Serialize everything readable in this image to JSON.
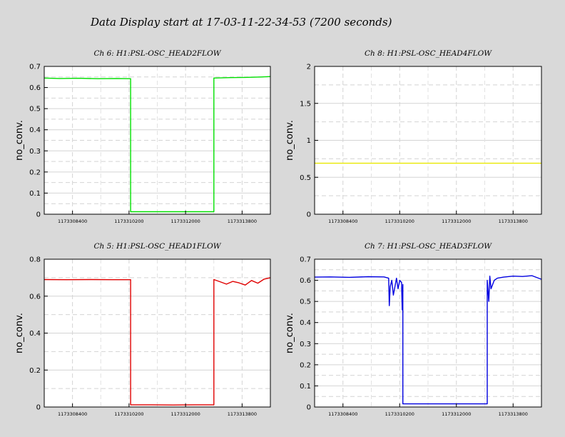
{
  "page": {
    "title": "Data Display start at 17-03-11-22-34-53 (7200 seconds)"
  },
  "chart_data": [
    {
      "type": "line",
      "title": "Ch 6: H1:PSL-OSC_HEAD2FLOW",
      "ylabel": "no_conv.",
      "xlabel": "",
      "xlim": [
        1173307500,
        1173314700
      ],
      "ylim": [
        0,
        0.7
      ],
      "yticks": [
        0,
        0.1,
        0.2,
        0.3,
        0.4,
        0.5,
        0.6,
        0.7
      ],
      "ytick_labels": [
        "0",
        "0.1",
        "0.2",
        "0.3",
        "0.4",
        "0.5",
        "0.6",
        "0.7"
      ],
      "xticks": [
        1173308400,
        1173310200,
        1173312000,
        1173313800
      ],
      "xtick_labels": [
        "1173308400",
        "1173310200",
        "1173312000",
        "1173313800"
      ],
      "grid": true,
      "color": "#00e000",
      "series": [
        {
          "x": [
            1173307500,
            1173308000,
            1173308600,
            1173309200,
            1173309800,
            1173310250,
            1173310250,
            1173310900,
            1173311600,
            1173312300,
            1173312900,
            1173312900,
            1173313400,
            1173313900,
            1173314400,
            1173314700
          ],
          "y": [
            0.645,
            0.643,
            0.644,
            0.642,
            0.643,
            0.642,
            0.012,
            0.012,
            0.012,
            0.012,
            0.012,
            0.645,
            0.647,
            0.648,
            0.65,
            0.652
          ]
        }
      ]
    },
    {
      "type": "line",
      "title": "Ch 8: H1:PSL-OSC_HEAD4FLOW",
      "ylabel": "no_conv.",
      "xlabel": "",
      "xlim": [
        1173307500,
        1173314700
      ],
      "ylim": [
        0,
        2
      ],
      "yticks": [
        0,
        0.5,
        1,
        1.5,
        2
      ],
      "ytick_labels": [
        "0",
        "0.5",
        "1",
        "1.5",
        "2"
      ],
      "xticks": [
        1173308400,
        1173310200,
        1173312000,
        1173313800
      ],
      "xtick_labels": [
        "1173308400",
        "1173310200",
        "1173312000",
        "1173313800"
      ],
      "grid": true,
      "color": "#e8e800",
      "series": [
        {
          "x": [
            1173307500,
            1173314700
          ],
          "y": [
            0.69,
            0.69
          ]
        }
      ]
    },
    {
      "type": "line",
      "title": "Ch 5: H1:PSL-OSC_HEAD1FLOW",
      "ylabel": "no_conv.",
      "xlabel": "",
      "xlim": [
        1173307500,
        1173314700
      ],
      "ylim": [
        0,
        0.8
      ],
      "yticks": [
        0,
        0.2,
        0.4,
        0.6,
        0.8
      ],
      "ytick_labels": [
        "0",
        "0.2",
        "0.4",
        "0.6",
        "0.8"
      ],
      "xticks": [
        1173308400,
        1173310200,
        1173312000,
        1173313800
      ],
      "xtick_labels": [
        "1173308400",
        "1173310200",
        "1173312000",
        "1173313800"
      ],
      "grid": true,
      "color": "#e00000",
      "series": [
        {
          "x": [
            1173307500,
            1173308200,
            1173309000,
            1173309700,
            1173310250,
            1173310250,
            1173310900,
            1173311600,
            1173312300,
            1173312900,
            1173312900,
            1173313100,
            1173313300,
            1173313500,
            1173313700,
            1173313900,
            1173314100,
            1173314300,
            1173314500,
            1173314700
          ],
          "y": [
            0.69,
            0.689,
            0.69,
            0.689,
            0.689,
            0.012,
            0.012,
            0.011,
            0.012,
            0.012,
            0.69,
            0.678,
            0.665,
            0.68,
            0.672,
            0.66,
            0.685,
            0.67,
            0.692,
            0.7
          ]
        }
      ]
    },
    {
      "type": "line",
      "title": "Ch 7: H1:PSL-OSC_HEAD3FLOW",
      "ylabel": "no_conv.",
      "xlabel": "",
      "xlim": [
        1173307500,
        1173314700
      ],
      "ylim": [
        0,
        0.7
      ],
      "yticks": [
        0,
        0.1,
        0.2,
        0.3,
        0.4,
        0.5,
        0.6,
        0.7
      ],
      "ytick_labels": [
        "0",
        "0.1",
        "0.2",
        "0.3",
        "0.4",
        "0.5",
        "0.6",
        "0.7"
      ],
      "xticks": [
        1173308400,
        1173310200,
        1173312000,
        1173313800
      ],
      "xtick_labels": [
        "1173308400",
        "1173310200",
        "1173312000",
        "1173313800"
      ],
      "grid": true,
      "color": "#0000e0",
      "series": [
        {
          "x": [
            1173307500,
            1173308000,
            1173308600,
            1173309200,
            1173309700,
            1173309850,
            1173309870,
            1173309900,
            1173309950,
            1173310000,
            1173310100,
            1173310150,
            1173310200,
            1173310260,
            1173310280,
            1173310300,
            1173310300,
            1173311000,
            1173311700,
            1173312400,
            1173312980,
            1173312980,
            1173313030,
            1173313060,
            1173313100,
            1173313200,
            1173313300,
            1173313500,
            1173313800,
            1173314100,
            1173314400,
            1173314700
          ],
          "y": [
            0.615,
            0.616,
            0.614,
            0.617,
            0.616,
            0.61,
            0.48,
            0.57,
            0.6,
            0.53,
            0.61,
            0.56,
            0.6,
            0.59,
            0.46,
            0.58,
            0.015,
            0.015,
            0.015,
            0.015,
            0.015,
            0.6,
            0.5,
            0.62,
            0.56,
            0.6,
            0.61,
            0.615,
            0.62,
            0.618,
            0.622,
            0.605
          ]
        }
      ]
    }
  ]
}
